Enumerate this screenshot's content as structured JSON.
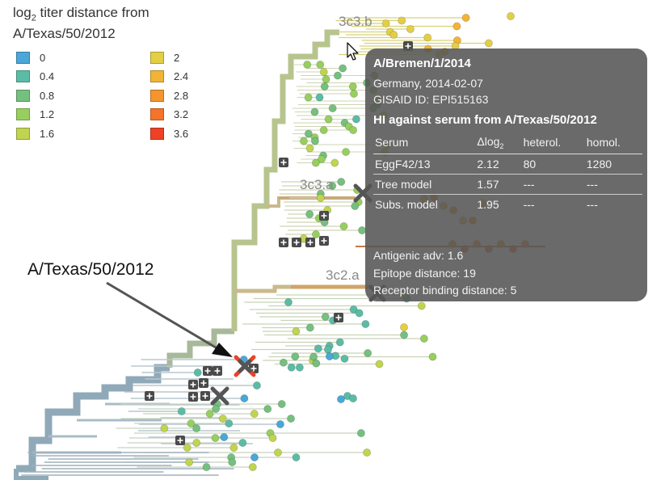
{
  "legend": {
    "title_prefix": "log",
    "title_sub": "2",
    "title_rest": " titer distance from",
    "title_line2": "A/Texas/50/2012",
    "items": [
      {
        "label": "0",
        "color": "#4aa7d8"
      },
      {
        "label": "0.4",
        "color": "#5bbca6"
      },
      {
        "label": "0.8",
        "color": "#76c07f"
      },
      {
        "label": "1.2",
        "color": "#97cf5e"
      },
      {
        "label": "1.6",
        "color": "#c1d44f"
      },
      {
        "label": "2",
        "color": "#e3cf45"
      },
      {
        "label": "2.4",
        "color": "#f2b437"
      },
      {
        "label": "2.8",
        "color": "#f6952d"
      },
      {
        "label": "3.2",
        "color": "#f4742a"
      },
      {
        "label": "3.6",
        "color": "#ee4125"
      }
    ]
  },
  "clades": {
    "c1": "3c3.b",
    "c2": "3c3.a",
    "c3": "3c2.a"
  },
  "callout_label": "A/Texas/50/2012",
  "tooltip": {
    "strain": "A/Bremen/1/2014",
    "location_date": "Germany, 2014-02-07",
    "gisaid": "GISAID ID: EPI515163",
    "hi_title": "HI against serum from A/Texas/50/2012",
    "headers": {
      "serum": "Serum",
      "dlog_prefix": "Δlog",
      "dlog_sub": "2",
      "heterol": "heterol.",
      "homol": "homol."
    },
    "rows": [
      {
        "serum": "EggF42/13",
        "dlog": "2.12",
        "heterol": "80",
        "homol": "1280"
      },
      {
        "serum": "Tree model",
        "dlog": "1.57",
        "heterol": "---",
        "homol": "---"
      },
      {
        "serum": "Subs. model",
        "dlog": "1.95",
        "heterol": "---",
        "homol": "---"
      }
    ],
    "antigenic_adv": "Antigenic adv: 1.6",
    "epitope": "Epitope distance: 19",
    "receptor": "Receptor binding distance: 5"
  },
  "chart_data": {
    "type": "scatter",
    "kind": "phylogenetic tree",
    "reference_strain": "A/Texas/50/2012",
    "color_by": "log2 titer distance",
    "highlighted_strain": "A/Bremen/1/2014",
    "clades": [
      "3c3.b",
      "3c3.a",
      "3c2.a"
    ]
  }
}
